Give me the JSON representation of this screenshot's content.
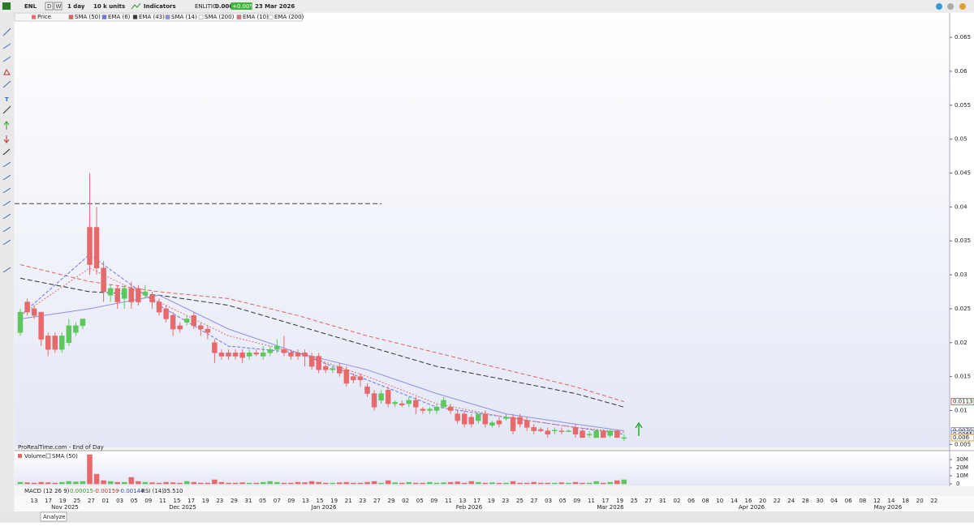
{
  "toolbar": {
    "symbol": "ENL",
    "periods": [
      "D",
      "W"
    ],
    "timeframe": "1 day",
    "units": "10 k units",
    "indicators": "Indicators",
    "name": "ENLITIC",
    "last": "0.006",
    "change": "+0.00%",
    "date": "23 Mar 2026"
  },
  "chart_data": {
    "type": "candlestick",
    "source": "ProRealTime.com - End of Day",
    "price_name": "Price",
    "up_color": "#5cc85c",
    "down_color": "#e8696b",
    "values": [
      [
        0.0215,
        0.025,
        0.021,
        0.0245
      ],
      [
        0.026,
        0.0265,
        0.024,
        0.0245
      ],
      [
        0.025,
        0.0255,
        0.0235,
        0.024
      ],
      [
        0.0245,
        0.0245,
        0.0195,
        0.0205
      ],
      [
        0.021,
        0.0215,
        0.018,
        0.019
      ],
      [
        0.021,
        0.0215,
        0.0185,
        0.019
      ],
      [
        0.019,
        0.0215,
        0.0185,
        0.021
      ],
      [
        0.02,
        0.0235,
        0.0195,
        0.0225
      ],
      [
        0.0215,
        0.023,
        0.021,
        0.0225
      ],
      [
        0.0225,
        0.0235,
        0.022,
        0.0235
      ],
      [
        0.037,
        0.045,
        0.03,
        0.0315
      ],
      [
        0.037,
        0.04,
        0.03,
        0.031
      ],
      [
        0.031,
        0.032,
        0.026,
        0.0275
      ],
      [
        0.027,
        0.0285,
        0.026,
        0.028
      ],
      [
        0.028,
        0.0285,
        0.025,
        0.026
      ],
      [
        0.0265,
        0.0285,
        0.025,
        0.028
      ],
      [
        0.028,
        0.029,
        0.025,
        0.026
      ],
      [
        0.028,
        0.0285,
        0.0255,
        0.026
      ],
      [
        0.027,
        0.0285,
        0.0265,
        0.0275
      ],
      [
        0.027,
        0.0275,
        0.025,
        0.026
      ],
      [
        0.026,
        0.0265,
        0.024,
        0.0245
      ],
      [
        0.025,
        0.0255,
        0.023,
        0.0235
      ],
      [
        0.024,
        0.0245,
        0.021,
        0.022
      ],
      [
        0.0225,
        0.023,
        0.0215,
        0.022
      ],
      [
        0.023,
        0.024,
        0.0225,
        0.0235
      ],
      [
        0.024,
        0.0245,
        0.022,
        0.0225
      ],
      [
        0.0225,
        0.023,
        0.021,
        0.022
      ],
      [
        0.022,
        0.0225,
        0.0205,
        0.0215
      ],
      [
        0.02,
        0.0205,
        0.017,
        0.0185
      ],
      [
        0.0185,
        0.019,
        0.0175,
        0.018
      ],
      [
        0.0185,
        0.019,
        0.0175,
        0.018
      ],
      [
        0.0185,
        0.019,
        0.0175,
        0.018
      ],
      [
        0.0185,
        0.019,
        0.017,
        0.0178
      ],
      [
        0.018,
        0.019,
        0.0175,
        0.0185
      ],
      [
        0.0185,
        0.019,
        0.018,
        0.0183
      ],
      [
        0.018,
        0.0195,
        0.0175,
        0.0185
      ],
      [
        0.0185,
        0.0195,
        0.018,
        0.019
      ],
      [
        0.019,
        0.0205,
        0.0185,
        0.0195
      ],
      [
        0.019,
        0.021,
        0.018,
        0.0185
      ],
      [
        0.0185,
        0.019,
        0.0175,
        0.018
      ],
      [
        0.0185,
        0.019,
        0.0175,
        0.018
      ],
      [
        0.0185,
        0.019,
        0.0165,
        0.018
      ],
      [
        0.018,
        0.0185,
        0.016,
        0.0165
      ],
      [
        0.018,
        0.0185,
        0.0155,
        0.016
      ],
      [
        0.0165,
        0.017,
        0.0155,
        0.016
      ],
      [
        0.016,
        0.0165,
        0.0155,
        0.0162
      ],
      [
        0.0165,
        0.017,
        0.015,
        0.0155
      ],
      [
        0.016,
        0.0165,
        0.0135,
        0.014
      ],
      [
        0.015,
        0.0155,
        0.014,
        0.0145
      ],
      [
        0.015,
        0.0155,
        0.0135,
        0.0145
      ],
      [
        0.0135,
        0.014,
        0.012,
        0.0125
      ],
      [
        0.0125,
        0.013,
        0.01,
        0.0105
      ],
      [
        0.0115,
        0.013,
        0.011,
        0.0125
      ],
      [
        0.013,
        0.0135,
        0.0105,
        0.011
      ],
      [
        0.011,
        0.0115,
        0.0105,
        0.0112
      ],
      [
        0.011,
        0.0115,
        0.0105,
        0.0108
      ],
      [
        0.011,
        0.012,
        0.0105,
        0.0115
      ],
      [
        0.0115,
        0.012,
        0.0095,
        0.0105
      ],
      [
        0.0102,
        0.0105,
        0.0095,
        0.01
      ],
      [
        0.01,
        0.0105,
        0.0095,
        0.0102
      ],
      [
        0.01,
        0.011,
        0.0095,
        0.0105
      ],
      [
        0.0105,
        0.012,
        0.0105,
        0.0115
      ],
      [
        0.0105,
        0.011,
        0.0095,
        0.01
      ],
      [
        0.0095,
        0.01,
        0.008,
        0.0085
      ],
      [
        0.0095,
        0.01,
        0.0075,
        0.008
      ],
      [
        0.009,
        0.0095,
        0.0075,
        0.008
      ],
      [
        0.0085,
        0.0095,
        0.008,
        0.0095
      ],
      [
        0.0095,
        0.01,
        0.0075,
        0.008
      ],
      [
        0.0078,
        0.0085,
        0.0075,
        0.0082
      ],
      [
        0.0085,
        0.009,
        0.0075,
        0.008
      ],
      [
        0.0088,
        0.0095,
        0.0085,
        0.009
      ],
      [
        0.009,
        0.0095,
        0.0065,
        0.007
      ],
      [
        0.009,
        0.0095,
        0.0075,
        0.008
      ],
      [
        0.0085,
        0.009,
        0.007,
        0.0075
      ],
      [
        0.0075,
        0.008,
        0.0065,
        0.007
      ],
      [
        0.0072,
        0.0075,
        0.0068,
        0.007
      ],
      [
        0.007,
        0.0075,
        0.006,
        0.0065
      ],
      [
        0.007,
        0.0075,
        0.0065,
        0.0071
      ],
      [
        0.007,
        0.0075,
        0.0065,
        0.0069
      ],
      [
        0.007,
        0.0072,
        0.0068,
        0.007
      ],
      [
        0.0075,
        0.008,
        0.006,
        0.0065
      ],
      [
        0.007,
        0.0072,
        0.006,
        0.006
      ],
      [
        0.0065,
        0.007,
        0.006,
        0.0065
      ],
      [
        0.006,
        0.0072,
        0.006,
        0.007
      ],
      [
        0.007,
        0.0072,
        0.006,
        0.006
      ],
      [
        0.0063,
        0.0072,
        0.006,
        0.007
      ],
      [
        0.007,
        0.0072,
        0.006,
        0.006
      ],
      [
        0.006,
        0.0065,
        0.0055,
        0.006
      ]
    ],
    "series_x": [
      0,
      10,
      20,
      30,
      40,
      50,
      60,
      70,
      80,
      87
    ],
    "series": [
      {
        "name": "SMA (50)",
        "color": "#e06060",
        "dash": "5,3",
        "values": [
          0.0315,
          0.029,
          0.0275,
          0.0265,
          0.024,
          0.021,
          0.0185,
          0.016,
          0.0135,
          0.0113
        ]
      },
      {
        "name": "EMA (6)",
        "color": "#6b78e0",
        "dash": "4,2",
        "values": [
          0.024,
          0.033,
          0.0255,
          0.0195,
          0.0185,
          0.0145,
          0.0105,
          0.009,
          0.0075,
          0.0065
        ]
      },
      {
        "name": "EMA (43)",
        "color": "#333333",
        "dash": "6,3",
        "values": [
          0.0295,
          0.0275,
          0.027,
          0.0255,
          0.0225,
          0.0195,
          0.0165,
          0.0145,
          0.0125,
          0.0105
        ]
      },
      {
        "name": "SMA (14)",
        "color": "#8a90e8",
        "dash": "none",
        "values": [
          0.0235,
          0.025,
          0.027,
          0.022,
          0.0185,
          0.016,
          0.0125,
          0.0095,
          0.008,
          0.007
        ]
      },
      {
        "name": "SMA (200)",
        "color": "#ffffff",
        "dash": "none",
        "values": []
      },
      {
        "name": "EMA (10)",
        "color": "#e07070",
        "dash": "2,2",
        "values": [
          0.024,
          0.031,
          0.026,
          0.021,
          0.0185,
          0.015,
          0.011,
          0.009,
          0.0075,
          0.0068
        ]
      },
      {
        "name": "EMA (200)",
        "color": "#ffffff",
        "dash": "none",
        "values": []
      }
    ],
    "ylim": [
      0.0048,
      0.0686
    ],
    "yticks": [
      0.005,
      0.01,
      0.015,
      0.02,
      0.025,
      0.03,
      0.035,
      0.04,
      0.045,
      0.05,
      0.055,
      0.06,
      0.065
    ],
    "hline": 0.0405,
    "badges": [
      {
        "value": 0.0113,
        "label": "0.0113"
      },
      {
        "value": 0.007,
        "label": "0.0070"
      },
      {
        "value": 0.0065,
        "label": "0.0065"
      },
      {
        "value": 0.006,
        "label": "0.006"
      }
    ],
    "x_labels": [
      "13",
      "17",
      "19",
      "25",
      "27",
      "01",
      "03",
      "05",
      "09",
      "11",
      "15",
      "17",
      "19",
      "23",
      "29",
      "31",
      "05",
      "07",
      "09",
      "13",
      "15",
      "19",
      "21",
      "23",
      "27",
      "29",
      "02",
      "05",
      "09",
      "11",
      "13",
      "17",
      "19",
      "23",
      "25",
      "27",
      "03",
      "05",
      "09",
      "11",
      "17",
      "19",
      "25",
      "27",
      "31",
      "02",
      "06",
      "08",
      "10",
      "14",
      "16",
      "20",
      "22",
      "24",
      "28",
      "30",
      "04",
      "06",
      "08",
      "12",
      "14",
      "18",
      "20",
      "22"
    ],
    "month_labels": [
      "Nov 2025",
      "Dec 2025",
      "Jan 2026",
      "Feb 2026",
      "Mar 2026",
      "Apr 2026",
      "May 2026"
    ],
    "volume": {
      "title": "Volume",
      "sma": "SMA (50)",
      "ylim": [
        0,
        40000000
      ],
      "yticks": [
        {
          "value": 30000000,
          "label": "30M"
        },
        {
          "value": 20000000,
          "label": "20M"
        },
        {
          "value": 10000000,
          "label": "10M"
        },
        0
      ],
      "values": [
        2000000,
        1500000,
        1000000,
        2000000,
        1500000,
        1000000,
        2000000,
        3000000,
        2500000,
        3000000,
        36000000,
        12000000,
        4000000,
        3000000,
        2000000,
        2000000,
        8000000,
        3000000,
        2000000,
        1500000,
        1000000,
        2000000,
        1500000,
        1000000,
        3000000,
        2000000,
        1000000,
        1000000,
        5000000,
        2000000,
        1000000,
        1000000,
        1500000,
        1000000,
        1000000,
        2000000,
        3000000,
        2000000,
        1000000,
        1000000,
        2000000,
        1500000,
        3000000,
        2000000,
        1000000,
        1000000,
        1500000,
        2000000,
        1000000,
        1000000,
        2000000,
        3000000,
        1000000,
        4000000,
        1500000,
        1000000,
        2000000,
        1000000,
        1000000,
        2000000,
        1000000,
        1500000,
        2000000,
        2500000,
        1000000,
        3000000,
        2000000,
        1000000,
        1500000,
        1000000,
        1000000,
        3000000,
        1000000,
        1000000,
        2000000,
        1000000,
        1000000,
        1000000,
        1500000,
        1000000,
        2000000,
        1000000,
        1000000,
        3000000,
        1000000,
        2000000,
        4000000,
        5000000
      ]
    }
  },
  "macd": {
    "title": "MACD (12 26 9)",
    "values": [
      "0.00015",
      "-0.00159",
      "-0.00144"
    ],
    "rsi": "RSI (14)",
    "rsi_value": "35.510"
  },
  "footer": {
    "analyze": "Analyze"
  }
}
